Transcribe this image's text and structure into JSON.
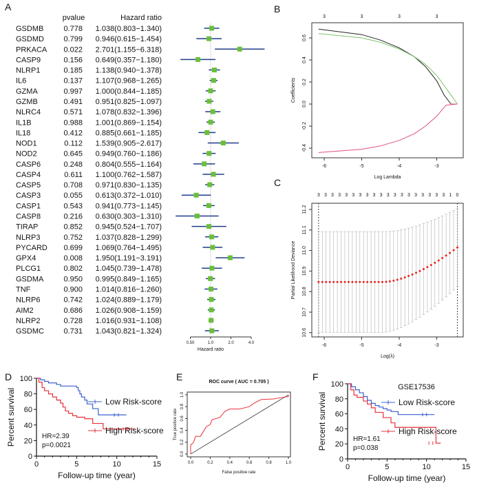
{
  "chart_data": [
    {
      "panel": "A",
      "type": "forest",
      "columns": {
        "gene": "",
        "pvalue": "pvalue",
        "hr": "Hazard ratio"
      },
      "xlabel": "Hazard ratio",
      "xscale": "log",
      "xticks": [
        "0.50",
        "1.0",
        "2.0",
        "4.0"
      ],
      "rows": [
        {
          "gene": "GSDMB",
          "p": "0.778",
          "hr": 1.038,
          "lo": 0.803,
          "hi": 1.34,
          "label": "1.038(0.803−1.340)"
        },
        {
          "gene": "GSDMD",
          "p": "0.799",
          "hr": 0.946,
          "lo": 0.615,
          "hi": 1.454,
          "label": "0.946(0.615−1.454)"
        },
        {
          "gene": "PRKACA",
          "p": "0.022",
          "hr": 2.701,
          "lo": 1.155,
          "hi": 6.318,
          "label": "2.701(1.155−6.318)"
        },
        {
          "gene": "CASP9",
          "p": "0.156",
          "hr": 0.649,
          "lo": 0.357,
          "hi": 1.18,
          "label": "0.649(0.357−1.180)"
        },
        {
          "gene": "NLRP1",
          "p": "0.185",
          "hr": 1.138,
          "lo": 0.94,
          "hi": 1.378,
          "label": "1.138(0.940−1.378)"
        },
        {
          "gene": "IL6",
          "p": "0.137",
          "hr": 1.107,
          "lo": 0.968,
          "hi": 1.265,
          "label": "1.107(0.968−1.265)"
        },
        {
          "gene": "GZMA",
          "p": "0.997",
          "hr": 1.0,
          "lo": 0.844,
          "hi": 1.185,
          "label": "1.000(0.844−1.185)"
        },
        {
          "gene": "GZMB",
          "p": "0.491",
          "hr": 0.951,
          "lo": 0.825,
          "hi": 1.097,
          "label": "0.951(0.825−1.097)"
        },
        {
          "gene": "NLRC4",
          "p": "0.571",
          "hr": 1.078,
          "lo": 0.832,
          "hi": 1.396,
          "label": "1.078(0.832−1.396)"
        },
        {
          "gene": "IL1B",
          "p": "0.988",
          "hr": 1.001,
          "lo": 0.869,
          "hi": 1.154,
          "label": "1.001(0.869−1.154)"
        },
        {
          "gene": "IL18",
          "p": "0.412",
          "hr": 0.885,
          "lo": 0.661,
          "hi": 1.185,
          "label": "0.885(0.661−1.185)"
        },
        {
          "gene": "NOD1",
          "p": "0.112",
          "hr": 1.539,
          "lo": 0.905,
          "hi": 2.617,
          "label": "1.539(0.905−2.617)"
        },
        {
          "gene": "NOD2",
          "p": "0.645",
          "hr": 0.949,
          "lo": 0.76,
          "hi": 1.186,
          "label": "0.949(0.760−1.186)"
        },
        {
          "gene": "CASP6",
          "p": "0.248",
          "hr": 0.804,
          "lo": 0.555,
          "hi": 1.164,
          "label": "0.804(0.555−1.164)"
        },
        {
          "gene": "CASP4",
          "p": "0.611",
          "hr": 1.1,
          "lo": 0.762,
          "hi": 1.587,
          "label": "1.100(0.762−1.587)"
        },
        {
          "gene": "CASP5",
          "p": "0.708",
          "hr": 0.971,
          "lo": 0.83,
          "hi": 1.135,
          "label": "0.971(0.830−1.135)"
        },
        {
          "gene": "CASP3",
          "p": "0.055",
          "hr": 0.613,
          "lo": 0.372,
          "hi": 1.01,
          "label": "0.613(0.372−1.010)"
        },
        {
          "gene": "CASP1",
          "p": "0.543",
          "hr": 0.941,
          "lo": 0.773,
          "hi": 1.145,
          "label": "0.941(0.773−1.145)"
        },
        {
          "gene": "CASP8",
          "p": "0.216",
          "hr": 0.63,
          "lo": 0.303,
          "hi": 1.31,
          "label": "0.630(0.303−1.310)"
        },
        {
          "gene": "TIRAP",
          "p": "0.852",
          "hr": 0.945,
          "lo": 0.524,
          "hi": 1.707,
          "label": "0.945(0.524−1.707)"
        },
        {
          "gene": "NLRP3",
          "p": "0.752",
          "hr": 1.037,
          "lo": 0.828,
          "hi": 1.299,
          "label": "1.037(0.828−1.299)"
        },
        {
          "gene": "PYCARD",
          "p": "0.699",
          "hr": 1.069,
          "lo": 0.764,
          "hi": 1.495,
          "label": "1.069(0.764−1.495)"
        },
        {
          "gene": "GPX4",
          "p": "0.008",
          "hr": 1.95,
          "lo": 1.191,
          "hi": 3.191,
          "label": "1.950(1.191−3.191)"
        },
        {
          "gene": "PLCG1",
          "p": "0.802",
          "hr": 1.045,
          "lo": 0.739,
          "hi": 1.478,
          "label": "1.045(0.739−1.478)"
        },
        {
          "gene": "GSDMA",
          "p": "0.950",
          "hr": 0.995,
          "lo": 0.849,
          "hi": 1.165,
          "label": "0.995(0.849−1.165)"
        },
        {
          "gene": "TNF",
          "p": "0.900",
          "hr": 1.014,
          "lo": 0.816,
          "hi": 1.26,
          "label": "1.014(0.816−1.260)"
        },
        {
          "gene": "NLRP6",
          "p": "0.742",
          "hr": 1.024,
          "lo": 0.889,
          "hi": 1.179,
          "label": "1.024(0.889−1.179)"
        },
        {
          "gene": "AIM2",
          "p": "0.686",
          "hr": 1.026,
          "lo": 0.908,
          "hi": 1.159,
          "label": "1.026(0.908−1.159)"
        },
        {
          "gene": "NLRP2",
          "p": "0.728",
          "hr": 1.016,
          "lo": 0.931,
          "hi": 1.108,
          "label": "1.016(0.931−1.108)"
        },
        {
          "gene": "GSDMC",
          "p": "0.731",
          "hr": 1.043,
          "lo": 0.821,
          "hi": 1.324,
          "label": "1.043(0.821−1.324)"
        }
      ],
      "colors": {
        "box": "#6abf3a",
        "ci": "#1f3a8a"
      }
    },
    {
      "panel": "B",
      "type": "line",
      "xlabel": "Log Lambda",
      "ylabel": "Coefficients",
      "xlim": [
        -6.27,
        -2.3
      ],
      "ylim": [
        -0.48,
        0.72
      ],
      "xticks": [
        "-6",
        "-5",
        "-4",
        "-3"
      ],
      "yticks": [
        "-0.4",
        "-0.2",
        "0.0",
        "0.2",
        "0.4",
        "0.6"
      ],
      "top_ticks": [
        "3",
        "3",
        "3",
        "3"
      ],
      "series": [
        {
          "color": "#222222",
          "points": [
            [
              -6.15,
              0.68
            ],
            [
              -5,
              0.63
            ],
            [
              -4.5,
              0.58
            ],
            [
              -4,
              0.51
            ],
            [
              -3.6,
              0.43
            ],
            [
              -3.3,
              0.34
            ],
            [
              -3,
              0.21
            ],
            [
              -2.8,
              0.08
            ],
            [
              -2.62,
              0
            ]
          ]
        },
        {
          "color": "#7ac36a",
          "points": [
            [
              -6.15,
              0.64
            ],
            [
              -5,
              0.6
            ],
            [
              -4.5,
              0.56
            ],
            [
              -4,
              0.5
            ],
            [
              -3.6,
              0.43
            ],
            [
              -3.3,
              0.36
            ],
            [
              -3,
              0.26
            ],
            [
              -2.7,
              0.12
            ],
            [
              -2.45,
              0
            ]
          ]
        },
        {
          "color": "#e0507a",
          "points": [
            [
              -6.15,
              -0.44
            ],
            [
              -5,
              -0.41
            ],
            [
              -4.5,
              -0.38
            ],
            [
              -4,
              -0.33
            ],
            [
              -3.6,
              -0.27
            ],
            [
              -3.3,
              -0.2
            ],
            [
              -3,
              -0.11
            ],
            [
              -2.75,
              -0.01
            ],
            [
              -2.45,
              0
            ]
          ]
        }
      ]
    },
    {
      "panel": "C",
      "type": "scatter",
      "xlabel": "Log(λ)",
      "ylabel": "Partial Likelihood Deviance",
      "xlim": [
        -6.27,
        -2.3
      ],
      "ylim": [
        10.59,
        11.23
      ],
      "xticks": [
        "-6",
        "-5",
        "-4",
        "-3"
      ],
      "yticks": [
        "10.6",
        "10.7",
        "10.8",
        "10.9",
        "11.0",
        "11.1",
        "11.2"
      ],
      "top_ticks": [
        "3",
        "3",
        "3",
        "3",
        "3",
        "3",
        "3",
        "3",
        "3",
        "3",
        "3",
        "3",
        "3",
        "3",
        "3",
        "3",
        "3",
        "3",
        "3",
        "1",
        "0"
      ],
      "vlines": [
        -6.15,
        -2.45
      ],
      "point_color": "#e8231f",
      "errorbar_color": "#b0b0b0"
    },
    {
      "panel": "D",
      "type": "line",
      "xlabel": "Follow-up time (year)",
      "ylabel": "Percent survival",
      "xlim": [
        0,
        15
      ],
      "ylim": [
        0,
        100
      ],
      "xticks": [
        "0",
        "5",
        "10",
        "15"
      ],
      "yticks": [
        "0",
        "20",
        "40",
        "60",
        "80",
        "100"
      ],
      "annotation": {
        "hr": "HR=2.39",
        "p": "p=0.0021"
      },
      "series": [
        {
          "name": "Low Risk-score",
          "color": "#3a5fcd",
          "points": [
            [
              0,
              100
            ],
            [
              0.5,
              98
            ],
            [
              1,
              96
            ],
            [
              1.5,
              94
            ],
            [
              2.5,
              92
            ],
            [
              3,
              90
            ],
            [
              5,
              88
            ],
            [
              5.2,
              84
            ],
            [
              5.4,
              80
            ],
            [
              5.6,
              76
            ],
            [
              6,
              72
            ],
            [
              6.3,
              67
            ],
            [
              7,
              61
            ],
            [
              7.7,
              53
            ],
            [
              11.2,
              53
            ]
          ]
        },
        {
          "name": "High Risk-score",
          "color": "#e8303a",
          "points": [
            [
              0,
              100
            ],
            [
              0.3,
              95
            ],
            [
              0.7,
              88
            ],
            [
              1,
              84
            ],
            [
              1.5,
              80
            ],
            [
              2,
              76
            ],
            [
              2.5,
              72
            ],
            [
              3,
              68
            ],
            [
              3.3,
              63
            ],
            [
              3.6,
              58
            ],
            [
              4,
              55
            ],
            [
              4.5,
              52
            ],
            [
              5,
              50
            ],
            [
              6,
              48
            ],
            [
              7,
              42
            ],
            [
              8.3,
              35
            ],
            [
              12.3,
              35
            ]
          ]
        }
      ]
    },
    {
      "panel": "E",
      "type": "line",
      "title": "ROC curve ( AUC =  0.705 )",
      "xlabel": "False positive rate",
      "ylabel": "True positive rate",
      "xlim": [
        0,
        1
      ],
      "ylim": [
        0,
        1
      ],
      "xticks": [
        "0.0",
        "0.2",
        "0.4",
        "0.6",
        "0.8",
        "1.0"
      ],
      "yticks": [
        "0.0",
        "0.2",
        "0.4",
        "0.6",
        "0.8",
        "1.0"
      ],
      "series": [
        {
          "color": "#e8303a",
          "points": [
            [
              0,
              0
            ],
            [
              0,
              0.15
            ],
            [
              0.03,
              0.2
            ],
            [
              0.05,
              0.3
            ],
            [
              0.1,
              0.3
            ],
            [
              0.13,
              0.38
            ],
            [
              0.16,
              0.46
            ],
            [
              0.2,
              0.5
            ],
            [
              0.22,
              0.58
            ],
            [
              0.3,
              0.62
            ],
            [
              0.35,
              0.72
            ],
            [
              0.4,
              0.76
            ],
            [
              0.5,
              0.76
            ],
            [
              0.6,
              0.8
            ],
            [
              0.65,
              0.86
            ],
            [
              0.72,
              0.92
            ],
            [
              0.85,
              0.93
            ],
            [
              0.95,
              0.96
            ],
            [
              1,
              0.97
            ],
            [
              1,
              1
            ]
          ]
        }
      ]
    },
    {
      "panel": "F",
      "type": "line",
      "title": "GSE17536",
      "xlabel": "Follow-up time (year)",
      "ylabel": "Percent survival",
      "xlim": [
        0,
        15
      ],
      "ylim": [
        0,
        100
      ],
      "xticks": [
        "0",
        "5",
        "10",
        "15"
      ],
      "yticks": [
        "0",
        "20",
        "40",
        "60",
        "80",
        "100"
      ],
      "annotation": {
        "hr": "HR=1.61",
        "p": "p=0.038"
      },
      "series": [
        {
          "name": "Low Risk-score",
          "color": "#3a5fcd",
          "points": [
            [
              0,
              100
            ],
            [
              0.5,
              96
            ],
            [
              1,
              92
            ],
            [
              1.5,
              88
            ],
            [
              2,
              83
            ],
            [
              2.5,
              78
            ],
            [
              3,
              74
            ],
            [
              3.5,
              71
            ],
            [
              4,
              69
            ],
            [
              4.5,
              67
            ],
            [
              5,
              65
            ],
            [
              5.5,
              63
            ],
            [
              6.4,
              59
            ],
            [
              11,
              59
            ]
          ]
        },
        {
          "name": "High Risk-score",
          "color": "#e8303a",
          "points": [
            [
              0,
              100
            ],
            [
              0.4,
              92
            ],
            [
              0.8,
              85
            ],
            [
              1.2,
              82
            ],
            [
              2,
              77
            ],
            [
              2.5,
              73
            ],
            [
              3,
              68
            ],
            [
              3.5,
              62
            ],
            [
              4.5,
              55
            ],
            [
              5.5,
              48
            ],
            [
              6,
              42
            ],
            [
              11.2,
              42
            ],
            [
              11.2,
              21
            ],
            [
              11.8,
              21
            ]
          ]
        }
      ]
    }
  ]
}
